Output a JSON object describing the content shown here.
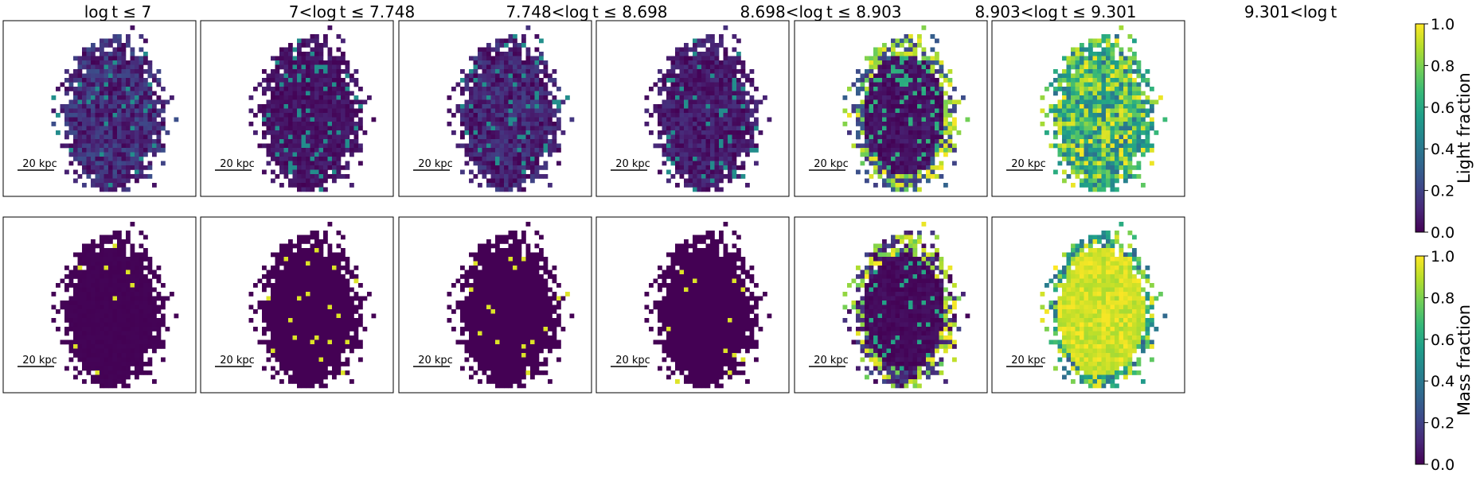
{
  "figure": {
    "scalebar_label": "20 kpc",
    "colormap": "viridis",
    "colormap_stops": [
      "#440154",
      "#482878",
      "#3e4989",
      "#31688e",
      "#26828e",
      "#1f9e89",
      "#35b779",
      "#6ece58",
      "#b5de2b",
      "#fde725"
    ],
    "column_titles": [
      "log t ≤ 7",
      "7<log t ≤ 7.748",
      "7.748<log t ≤ 8.698",
      "8.698<log t ≤ 8.903",
      "8.903<log t ≤ 9.301",
      "9.301<log t"
    ]
  },
  "chart_data": [
    {
      "type": "heatmap",
      "row": "light",
      "colorbar": {
        "label": "Light fraction",
        "range": [
          0.0,
          1.0
        ],
        "ticks": [
          "0.0",
          "0.2",
          "0.4",
          "0.6",
          "0.8",
          "1.0"
        ]
      },
      "panel_mean_fraction": [
        0.12,
        0.05,
        0.1,
        0.07,
        0.22,
        0.65
      ]
    },
    {
      "type": "heatmap",
      "row": "mass",
      "colorbar": {
        "label": "Mass fraction",
        "range": [
          0.0,
          1.0
        ],
        "ticks": [
          "0.0",
          "0.2",
          "0.4",
          "0.6",
          "0.8",
          "1.0"
        ]
      },
      "panel_mean_fraction": [
        0.01,
        0.0,
        0.0,
        0.0,
        0.15,
        0.88
      ]
    }
  ]
}
